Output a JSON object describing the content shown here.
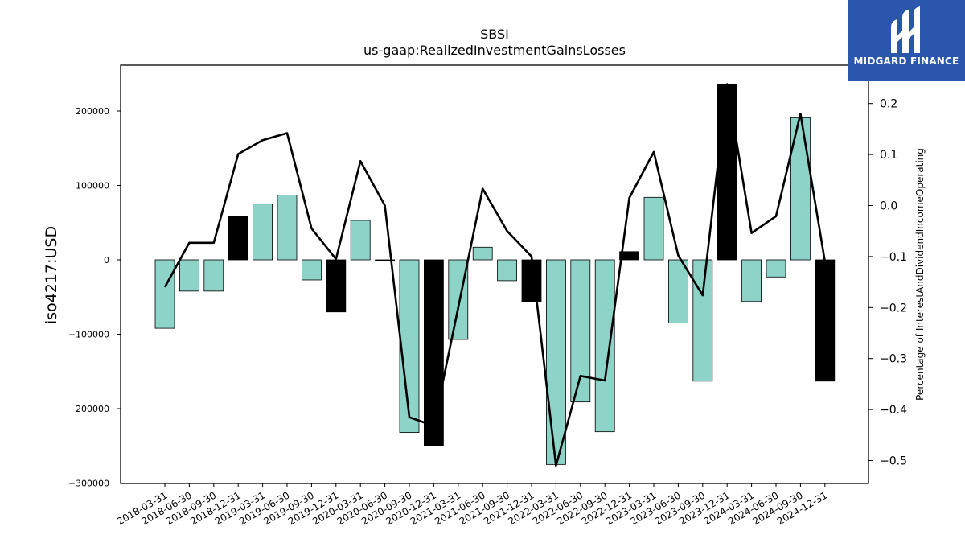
{
  "chart_data": {
    "type": "bar",
    "title": "SBSI",
    "subtitle": "us-gaap:RealizedInvestmentGainsLosses",
    "ylabel": "iso4217:USD",
    "y2label": "Percentage of InterestAndDividendIncomeOperating",
    "ylim": [
      -300000,
      260000
    ],
    "y2lim": [
      -0.55,
      0.27
    ],
    "yticks": [
      200000,
      100000,
      0,
      -100000,
      -200000,
      -300000
    ],
    "ytick_labels": [
      "200000",
      "100000",
      "0",
      "−100000",
      "−200000",
      "−300000"
    ],
    "y2ticks": [
      0.2,
      0.1,
      0.0,
      -0.1,
      -0.2,
      -0.3,
      -0.4,
      -0.5
    ],
    "y2tick_labels": [
      "0.2",
      "0.1",
      "0.0",
      "−0.1",
      "−0.2",
      "−0.3",
      "−0.4",
      "−0.5"
    ],
    "categories": [
      "2018-03-31",
      "2018-06-30",
      "2018-09-30",
      "2018-12-31",
      "2019-03-31",
      "2019-06-30",
      "2019-09-30",
      "2019-12-31",
      "2020-03-31",
      "2020-06-30",
      "2020-09-30",
      "2020-12-31",
      "2021-03-31",
      "2021-06-30",
      "2021-09-30",
      "2021-12-31",
      "2022-03-31",
      "2022-06-30",
      "2022-09-30",
      "2022-12-31",
      "2023-03-31",
      "2023-06-30",
      "2023-09-30",
      "2023-12-31",
      "2024-03-31",
      "2024-06-30",
      "2024-09-30",
      "2024-12-31"
    ],
    "values": [
      -92000,
      -42000,
      -42000,
      59000,
      75000,
      87000,
      -27000,
      -70000,
      53000,
      0,
      -232000,
      -250000,
      -107000,
      17000,
      -28000,
      -56000,
      -275000,
      -191000,
      -231000,
      11000,
      84000,
      -85000,
      -163000,
      236000,
      -56000,
      -23000,
      191000,
      -163000
    ],
    "bar_colors": [
      "#8dd3c7",
      "#8dd3c7",
      "#8dd3c7",
      "#000000",
      "#8dd3c7",
      "#8dd3c7",
      "#8dd3c7",
      "#000000",
      "#8dd3c7",
      "#000000",
      "#8dd3c7",
      "#000000",
      "#8dd3c7",
      "#8dd3c7",
      "#8dd3c7",
      "#000000",
      "#8dd3c7",
      "#8dd3c7",
      "#8dd3c7",
      "#000000",
      "#8dd3c7",
      "#8dd3c7",
      "#8dd3c7",
      "#000000",
      "#8dd3c7",
      "#8dd3c7",
      "#8dd3c7",
      "#000000"
    ],
    "line_series": {
      "axis": "right",
      "color": "#000000",
      "values": [
        -0.16,
        -0.073,
        -0.073,
        0.101,
        0.128,
        0.142,
        -0.045,
        -0.105,
        0.087,
        0.0,
        -0.415,
        -0.432,
        -0.2,
        0.033,
        -0.05,
        -0.1,
        -0.51,
        -0.334,
        -0.343,
        0.015,
        0.105,
        -0.098,
        -0.176,
        0.238,
        -0.054,
        -0.021,
        0.18,
        -0.11
      ]
    },
    "grid": false,
    "legend": "none"
  },
  "logo": {
    "text": "MIDGARD FINANCE",
    "bg_color": "#2a56ad"
  }
}
